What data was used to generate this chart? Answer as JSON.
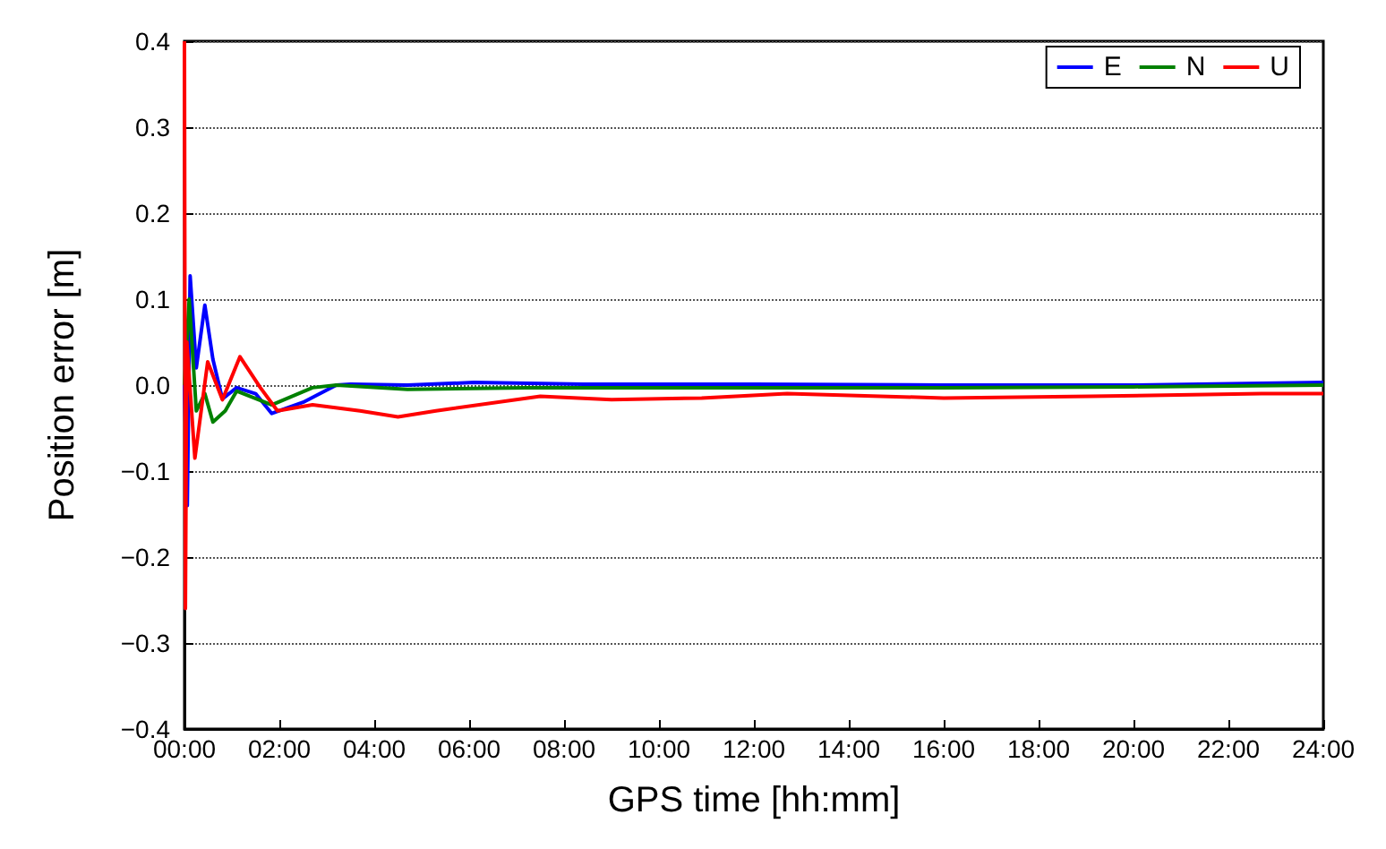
{
  "chart_data": {
    "type": "line",
    "xlabel": "GPS time [hh:mm]",
    "ylabel": "Position error [m]",
    "xlim": [
      0,
      24
    ],
    "ylim": [
      -0.4,
      0.4
    ],
    "xticks": [
      {
        "value": 0,
        "label": "00:00"
      },
      {
        "value": 2,
        "label": "02:00"
      },
      {
        "value": 4,
        "label": "04:00"
      },
      {
        "value": 6,
        "label": "06:00"
      },
      {
        "value": 8,
        "label": "08:00"
      },
      {
        "value": 10,
        "label": "10:00"
      },
      {
        "value": 12,
        "label": "12:00"
      },
      {
        "value": 14,
        "label": "14:00"
      },
      {
        "value": 16,
        "label": "16:00"
      },
      {
        "value": 18,
        "label": "18:00"
      },
      {
        "value": 20,
        "label": "20:00"
      },
      {
        "value": 22,
        "label": "22:00"
      },
      {
        "value": 24,
        "label": "24:00"
      }
    ],
    "yticks": [
      {
        "value": -0.4,
        "label": "−0.4"
      },
      {
        "value": -0.3,
        "label": "−0.3"
      },
      {
        "value": -0.2,
        "label": "−0.2"
      },
      {
        "value": -0.1,
        "label": "−0.1"
      },
      {
        "value": 0,
        "label": "0.0"
      },
      {
        "value": 0.1,
        "label": "0.1"
      },
      {
        "value": 0.2,
        "label": "0.2"
      },
      {
        "value": 0.3,
        "label": "0.3"
      },
      {
        "value": 0.4,
        "label": "0.4"
      }
    ],
    "grid": "y",
    "legend": "top right",
    "line_style": "solid",
    "marker": "none",
    "series": [
      {
        "name": "E",
        "color": "#0000ff",
        "x": [
          0,
          0.06,
          0.12,
          0.25,
          0.43,
          0.6,
          0.8,
          1.1,
          1.5,
          1.84,
          2.5,
          3.2,
          3.5,
          4.7,
          6.1,
          8.4,
          12,
          16,
          20,
          24
        ],
        "values": [
          0,
          -0.14,
          0.127,
          0.02,
          0.093,
          0.03,
          -0.016,
          -0.003,
          -0.01,
          -0.033,
          -0.02,
          0,
          0.001,
          0,
          0.003,
          0.001,
          0.001,
          0,
          0,
          0.003
        ]
      },
      {
        "name": "N",
        "color": "#008000",
        "x": [
          0,
          0.1,
          0.25,
          0.43,
          0.6,
          0.86,
          1.1,
          1.84,
          2.7,
          3.2,
          4.7,
          7.2,
          16,
          20,
          24
        ],
        "values": [
          0,
          0.1,
          -0.03,
          -0.01,
          -0.043,
          -0.03,
          -0.007,
          -0.023,
          -0.003,
          0,
          -0.005,
          -0.003,
          -0.003,
          -0.002,
          0
        ]
      },
      {
        "name": "U",
        "color": "#ff0000",
        "x": [
          0,
          0.02,
          0.05,
          0.22,
          0.49,
          0.8,
          1.17,
          1.6,
          1.96,
          2.7,
          3.7,
          4.5,
          5.3,
          7.5,
          9,
          10.9,
          12.7,
          16,
          19.1,
          22.7,
          24
        ],
        "values": [
          0.4,
          -0.26,
          0.05,
          -0.085,
          0.027,
          -0.017,
          0.033,
          -0.003,
          -0.03,
          -0.023,
          -0.03,
          -0.037,
          -0.03,
          -0.013,
          -0.017,
          -0.015,
          -0.01,
          -0.015,
          -0.013,
          -0.01,
          -0.01
        ]
      }
    ]
  }
}
